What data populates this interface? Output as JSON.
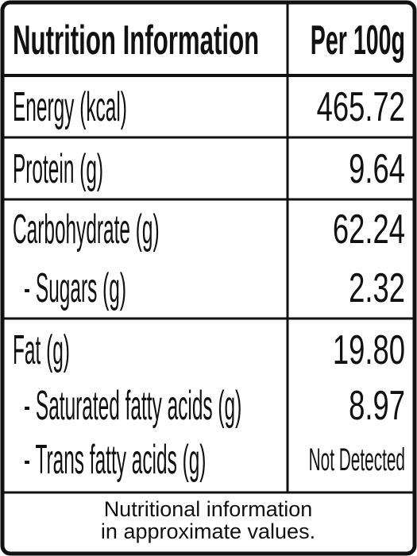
{
  "table": {
    "header": [
      "Nutrition Information",
      "Per 100g"
    ],
    "rows": [
      [
        "Energy (kcal)",
        "465.72"
      ],
      [
        "Protein (g)",
        "9.64"
      ],
      [
        "Carbohydrate (g)",
        "62.24"
      ],
      [
        "- Sugars (g)",
        "2.32"
      ],
      [
        "Fat (g)",
        "19.80"
      ],
      [
        "- Saturated fatty acids (g)",
        "8.97"
      ],
      [
        "- Trans fatty acids (g)",
        "Not Detected"
      ]
    ],
    "footer": [
      "Nutritional information",
      "in approximate values."
    ]
  }
}
